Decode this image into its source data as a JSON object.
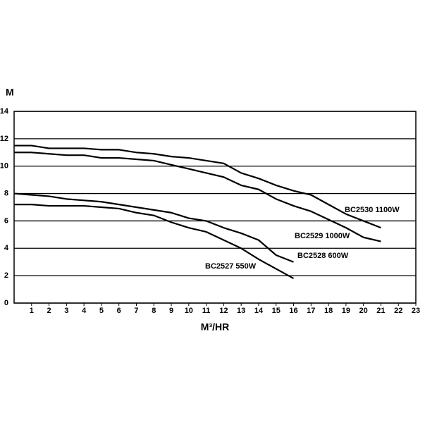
{
  "chart_data": {
    "type": "line",
    "x_label": "M³/HR",
    "y_label": "M",
    "x": [
      0,
      1,
      2,
      3,
      4,
      5,
      6,
      7,
      8,
      9,
      10,
      11,
      12,
      13,
      14,
      15,
      16,
      17,
      18,
      19,
      20,
      21
    ],
    "series": [
      {
        "name": "BC2530  1100W",
        "color": "#000000",
        "values": [
          11.5,
          11.5,
          11.3,
          11.3,
          11.3,
          11.2,
          11.2,
          11.0,
          10.9,
          10.7,
          10.6,
          10.4,
          10.2,
          9.5,
          9.1,
          8.6,
          8.2,
          7.9,
          7.2,
          6.5,
          6.0,
          5.5
        ]
      },
      {
        "name": "BC2529  1000W",
        "color": "#000000",
        "values": [
          11.0,
          11.0,
          10.9,
          10.8,
          10.8,
          10.6,
          10.6,
          10.5,
          10.4,
          10.1,
          9.8,
          9.5,
          9.2,
          8.6,
          8.3,
          7.6,
          7.1,
          6.7,
          6.1,
          5.5,
          4.8,
          4.5
        ]
      },
      {
        "name": "BC2528  600W",
        "color": "#000000",
        "values": [
          8.0,
          7.9,
          7.8,
          7.6,
          7.5,
          7.4,
          7.2,
          7.0,
          6.8,
          6.6,
          6.2,
          6.0,
          5.5,
          5.1,
          4.6,
          3.5,
          3.0,
          null,
          null,
          null,
          null,
          null
        ]
      },
      {
        "name": "BC2527  550W",
        "color": "#000000",
        "values": [
          7.2,
          7.2,
          7.1,
          7.1,
          7.1,
          7.0,
          6.9,
          6.6,
          6.4,
          5.9,
          5.5,
          5.2,
          4.6,
          4.0,
          3.2,
          2.5,
          1.8,
          null,
          null,
          null,
          null,
          null
        ]
      }
    ],
    "xlim": [
      0,
      23
    ],
    "xticks": [
      1,
      2,
      3,
      4,
      5,
      6,
      7,
      8,
      9,
      10,
      11,
      12,
      13,
      14,
      15,
      16,
      17,
      18,
      19,
      20,
      21,
      22,
      23
    ],
    "ylim": [
      0,
      14
    ],
    "yticks": [
      0,
      2,
      4,
      6,
      8,
      10,
      12,
      14
    ],
    "grid": true
  }
}
